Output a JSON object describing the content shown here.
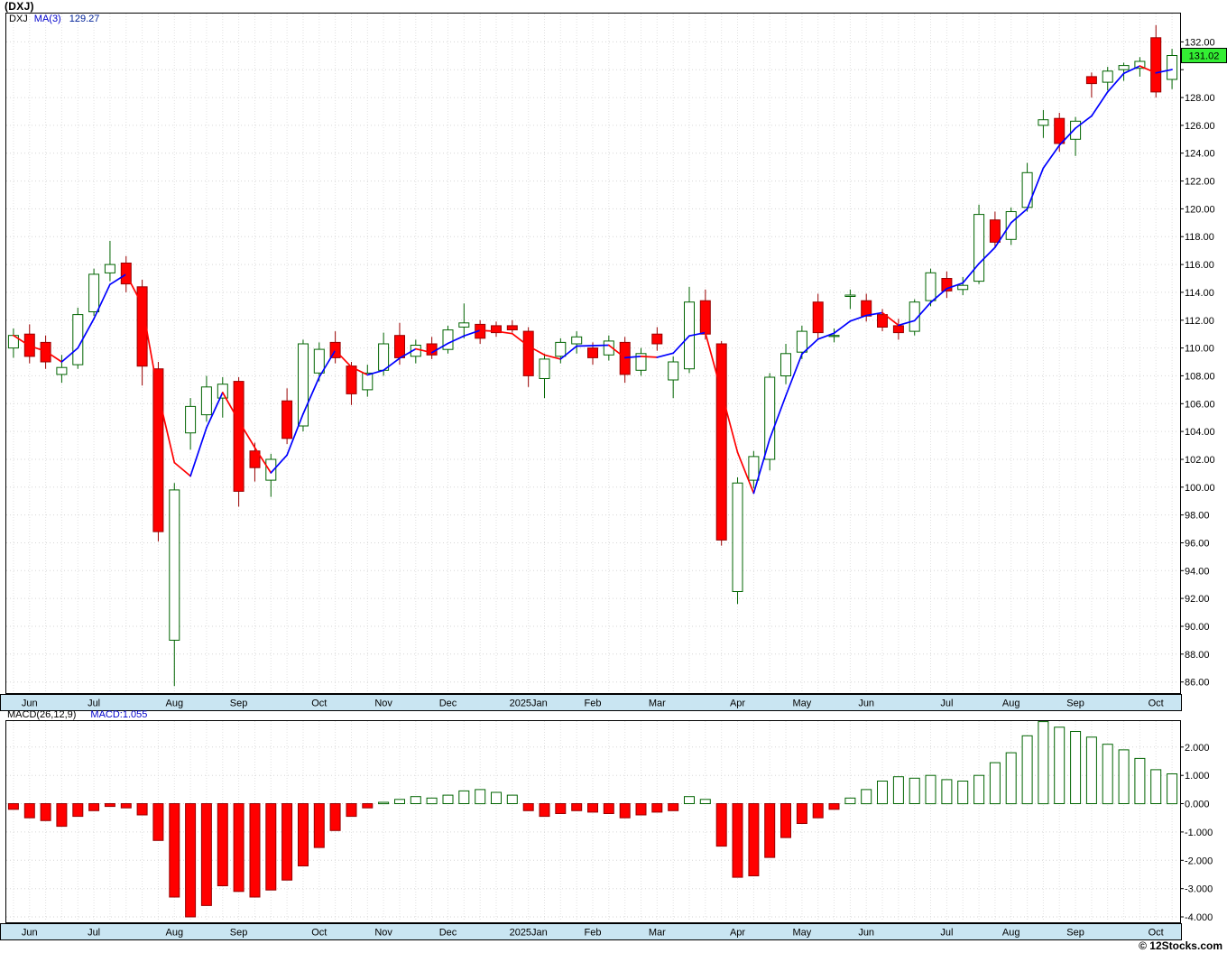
{
  "header": {
    "title": "(DXJ)"
  },
  "main_legend": {
    "symbol": "DXJ",
    "ma_label": "MA(3)",
    "ma_value": "129.27"
  },
  "macd_legend": {
    "label": "MACD(26,12,9)",
    "value_label": "MACD:1.055"
  },
  "footer": {
    "copyright": "© 12Stocks.com"
  },
  "colors": {
    "candle_up_outline": "#006400",
    "candle_up_fill": "#ffffff",
    "candle_down_fill": "#ff0000",
    "candle_down_outline": "#990000",
    "ma_rising": "#0000ff",
    "ma_falling": "#ff0000",
    "grid": "#d6d6d6",
    "vgrid": "#e2e2e2",
    "axis_band_bg": "#c9e5f2",
    "price_flag_bg": "#33ee33",
    "macd_pos_outline": "#006400",
    "macd_neg_fill": "#ff0000",
    "legend_blue": "#0000cc"
  },
  "chart_data": [
    {
      "type": "candlestick",
      "title": "(DXJ)",
      "series_label": "DXJ",
      "timeframe": "weekly",
      "overlay": {
        "name": "MA(3)",
        "current_value": 129.27
      },
      "last_price": 131.02,
      "last_price_label": "131.02",
      "ylim": [
        85.2,
        134.1
      ],
      "grid": true,
      "y_ticks": [
        {
          "value": 132,
          "label": "132.00"
        },
        {
          "value": 130,
          "label": ""
        },
        {
          "value": 128,
          "label": "128.00"
        },
        {
          "value": 126,
          "label": "126.00"
        },
        {
          "value": 124,
          "label": "124.00"
        },
        {
          "value": 122,
          "label": "122.00"
        },
        {
          "value": 120,
          "label": "120.00"
        },
        {
          "value": 118,
          "label": "118.00"
        },
        {
          "value": 116,
          "label": "116.00"
        },
        {
          "value": 114,
          "label": "114.00"
        },
        {
          "value": 112,
          "label": "112.00"
        },
        {
          "value": 110,
          "label": "110.00"
        },
        {
          "value": 108,
          "label": "108.00"
        },
        {
          "value": 106,
          "label": "106.00"
        },
        {
          "value": 104,
          "label": "104.00"
        },
        {
          "value": 102,
          "label": "102.00"
        },
        {
          "value": 100,
          "label": "100.00"
        },
        {
          "value": 98,
          "label": "98.00"
        },
        {
          "value": 96,
          "label": "96.00"
        },
        {
          "value": 94,
          "label": "94.00"
        },
        {
          "value": 92,
          "label": "92.00"
        },
        {
          "value": 90,
          "label": "90.00"
        },
        {
          "value": 88,
          "label": "88.00"
        },
        {
          "value": 86,
          "label": "86.00"
        }
      ],
      "month_ticks": [
        {
          "index": 1,
          "label": "Jun"
        },
        {
          "index": 5,
          "label": "Jul"
        },
        {
          "index": 10,
          "label": "Aug"
        },
        {
          "index": 14,
          "label": "Sep"
        },
        {
          "index": 19,
          "label": "Oct"
        },
        {
          "index": 23,
          "label": "Nov"
        },
        {
          "index": 27,
          "label": "Dec"
        },
        {
          "index": 32,
          "label": "2025Jan"
        },
        {
          "index": 36,
          "label": "Feb"
        },
        {
          "index": 40,
          "label": "Mar"
        },
        {
          "index": 45,
          "label": "Apr"
        },
        {
          "index": 49,
          "label": "May"
        },
        {
          "index": 53,
          "label": "Jun"
        },
        {
          "index": 58,
          "label": "Jul"
        },
        {
          "index": 62,
          "label": "Aug"
        },
        {
          "index": 66,
          "label": "Sep"
        },
        {
          "index": 71,
          "label": "Oct"
        }
      ],
      "candles_ohlc": [
        [
          110.0,
          111.4,
          109.3,
          110.9
        ],
        [
          111.0,
          111.7,
          108.9,
          109.4
        ],
        [
          110.4,
          110.9,
          108.5,
          109.0
        ],
        [
          108.1,
          109.5,
          107.5,
          108.6
        ],
        [
          108.8,
          112.9,
          108.5,
          112.4
        ],
        [
          112.6,
          115.7,
          112.3,
          115.3
        ],
        [
          115.4,
          117.7,
          114.8,
          116.0
        ],
        [
          116.1,
          116.6,
          114.0,
          114.6
        ],
        [
          114.4,
          114.9,
          107.3,
          108.7
        ],
        [
          108.5,
          109.0,
          96.1,
          96.8
        ],
        [
          89.0,
          100.3,
          85.7,
          99.8
        ],
        [
          103.9,
          106.4,
          102.7,
          105.8
        ],
        [
          105.2,
          108.0,
          104.7,
          107.2
        ],
        [
          106.4,
          107.9,
          105.0,
          107.4
        ],
        [
          107.6,
          107.9,
          98.6,
          99.7
        ],
        [
          102.6,
          103.2,
          100.4,
          101.4
        ],
        [
          100.5,
          102.4,
          99.3,
          102.0
        ],
        [
          106.2,
          107.1,
          103.1,
          103.5
        ],
        [
          104.4,
          110.6,
          104.0,
          110.3
        ],
        [
          108.2,
          110.4,
          107.6,
          109.9
        ],
        [
          110.4,
          111.2,
          108.9,
          109.3
        ],
        [
          108.7,
          109.0,
          105.9,
          106.7
        ],
        [
          107.0,
          108.8,
          106.5,
          108.2
        ],
        [
          108.4,
          111.1,
          108.0,
          110.3
        ],
        [
          110.9,
          111.8,
          108.8,
          109.3
        ],
        [
          109.4,
          110.6,
          108.9,
          110.2
        ],
        [
          110.3,
          110.8,
          109.2,
          109.5
        ],
        [
          109.9,
          111.6,
          109.6,
          111.3
        ],
        [
          111.5,
          113.2,
          110.7,
          111.8
        ],
        [
          111.7,
          112.0,
          110.3,
          110.7
        ],
        [
          111.6,
          111.9,
          110.8,
          111.1
        ],
        [
          111.6,
          112.0,
          111.1,
          111.3
        ],
        [
          111.2,
          111.5,
          107.2,
          108.0
        ],
        [
          107.8,
          109.6,
          106.4,
          109.2
        ],
        [
          109.4,
          110.7,
          108.9,
          110.4
        ],
        [
          110.3,
          111.2,
          109.6,
          110.8
        ],
        [
          110.0,
          110.4,
          108.8,
          109.3
        ],
        [
          109.5,
          110.9,
          109.1,
          110.5
        ],
        [
          110.4,
          110.8,
          107.5,
          108.1
        ],
        [
          108.4,
          110.0,
          108.0,
          109.6
        ],
        [
          111.0,
          111.5,
          109.8,
          110.3
        ],
        [
          107.7,
          109.4,
          106.4,
          109.0
        ],
        [
          108.5,
          114.4,
          108.2,
          113.3
        ],
        [
          113.4,
          114.2,
          110.6,
          111.0
        ],
        [
          110.3,
          110.5,
          95.8,
          96.2
        ],
        [
          92.5,
          100.7,
          91.6,
          100.3
        ],
        [
          100.5,
          102.6,
          99.9,
          102.2
        ],
        [
          102.0,
          108.2,
          101.2,
          107.9
        ],
        [
          108.0,
          110.3,
          107.4,
          109.6
        ],
        [
          109.7,
          111.6,
          109.2,
          111.2
        ],
        [
          113.3,
          113.9,
          110.6,
          111.1
        ],
        [
          110.9,
          111.4,
          110.4,
          110.9
        ],
        [
          113.7,
          114.2,
          112.8,
          113.8
        ],
        [
          113.4,
          113.9,
          111.9,
          112.3
        ],
        [
          112.4,
          112.8,
          111.2,
          111.5
        ],
        [
          111.6,
          112.1,
          110.6,
          111.1
        ],
        [
          111.2,
          113.5,
          110.9,
          113.3
        ],
        [
          113.4,
          115.7,
          113.0,
          115.4
        ],
        [
          115.0,
          115.5,
          113.6,
          114.1
        ],
        [
          114.2,
          115.1,
          113.8,
          114.5
        ],
        [
          114.8,
          120.3,
          114.6,
          119.6
        ],
        [
          119.2,
          119.8,
          117.2,
          117.6
        ],
        [
          117.8,
          120.1,
          117.4,
          119.8
        ],
        [
          120.1,
          123.3,
          119.8,
          122.6
        ],
        [
          126.0,
          127.1,
          125.1,
          126.4
        ],
        [
          126.5,
          126.9,
          124.1,
          124.7
        ],
        [
          125.0,
          126.6,
          123.8,
          126.3
        ],
        [
          129.5,
          129.8,
          128.0,
          129.0
        ],
        [
          129.1,
          130.2,
          128.5,
          129.9
        ],
        [
          130.0,
          130.5,
          129.2,
          130.3
        ],
        [
          130.1,
          130.9,
          129.5,
          130.6
        ],
        [
          132.3,
          133.2,
          128.0,
          128.4
        ],
        [
          129.3,
          131.5,
          128.6,
          131.02
        ]
      ]
    },
    {
      "type": "bar",
      "title": "MACD(26,12,9)",
      "current_value": 1.055,
      "ylim": [
        -4.19,
        2.95
      ],
      "grid": true,
      "y_ticks": [
        {
          "value": 2,
          "label": "2.000"
        },
        {
          "value": 1,
          "label": "1.000"
        },
        {
          "value": 0,
          "label": "0.000"
        },
        {
          "value": -1,
          "label": "-1.000"
        },
        {
          "value": -2,
          "label": "-2.000"
        },
        {
          "value": -3,
          "label": "-3.000"
        },
        {
          "value": -4,
          "label": "-4.000"
        }
      ],
      "values": [
        -0.2,
        -0.5,
        -0.6,
        -0.8,
        -0.45,
        -0.25,
        -0.1,
        -0.15,
        -0.4,
        -1.3,
        -3.3,
        -4.0,
        -3.6,
        -2.9,
        -3.1,
        -3.3,
        -3.05,
        -2.7,
        -2.2,
        -1.55,
        -0.95,
        -0.45,
        -0.15,
        0.05,
        0.15,
        0.25,
        0.2,
        0.3,
        0.45,
        0.5,
        0.4,
        0.3,
        -0.25,
        -0.45,
        -0.35,
        -0.25,
        -0.3,
        -0.35,
        -0.5,
        -0.4,
        -0.3,
        -0.25,
        0.25,
        0.15,
        -1.5,
        -2.6,
        -2.55,
        -1.9,
        -1.2,
        -0.7,
        -0.5,
        -0.2,
        0.2,
        0.5,
        0.8,
        0.95,
        0.9,
        1.0,
        0.85,
        0.8,
        1.0,
        1.45,
        1.8,
        2.4,
        2.9,
        2.7,
        2.55,
        2.35,
        2.1,
        1.9,
        1.6,
        1.2,
        1.055
      ]
    }
  ]
}
